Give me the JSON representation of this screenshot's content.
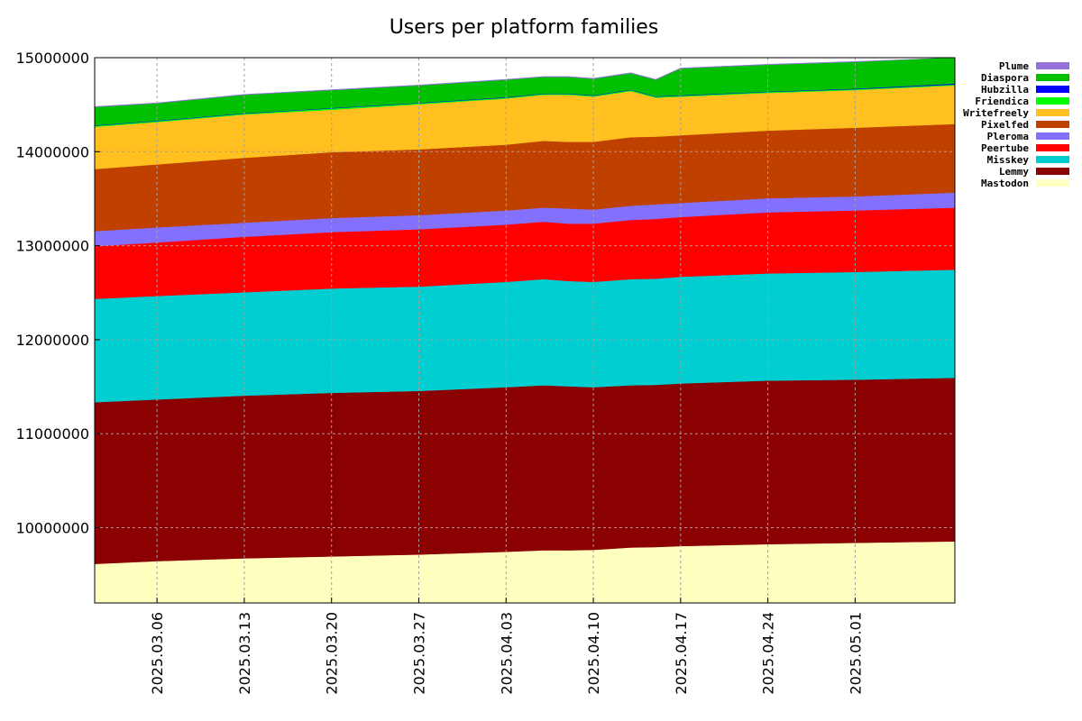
{
  "chart_data": {
    "type": "area",
    "stacked": true,
    "title": "Users per platform families",
    "xlabel": "",
    "ylabel": "",
    "x_range": [
      "2025-03-01",
      "2025-05-09"
    ],
    "ylim": [
      9200000,
      15000000
    ],
    "yticks": [
      10000000,
      11000000,
      12000000,
      13000000,
      14000000,
      15000000
    ],
    "ytick_labels": [
      "10000000",
      "11000000",
      "12000000",
      "13000000",
      "14000000",
      "15000000"
    ],
    "xticks": [
      "2025-03-06",
      "2025-03-13",
      "2025-03-20",
      "2025-03-27",
      "2025-04-03",
      "2025-04-10",
      "2025-04-17",
      "2025-04-24",
      "2025-05-01"
    ],
    "xtick_labels": [
      "2025.03.06",
      "2025.03.13",
      "2025.03.20",
      "2025.03.27",
      "2025.04.03",
      "2025.04.10",
      "2025.04.17",
      "2025.04.24",
      "2025.05.01"
    ],
    "grid": true,
    "legend_position": "top-right",
    "dates": [
      "2025-03-01",
      "2025-03-06",
      "2025-03-13",
      "2025-03-20",
      "2025-03-27",
      "2025-04-03",
      "2025-04-06",
      "2025-04-08",
      "2025-04-10",
      "2025-04-13",
      "2025-04-15",
      "2025-04-17",
      "2025-04-24",
      "2025-05-01",
      "2025-05-09"
    ],
    "cumulative_top": true,
    "series": [
      {
        "name": "Mastodon",
        "color": "#ffffc0",
        "values": [
          9610000,
          9640000,
          9670000,
          9690000,
          9710000,
          9740000,
          9755000,
          9755000,
          9760000,
          9785000,
          9790000,
          9800000,
          9820000,
          9835000,
          9850000
        ]
      },
      {
        "name": "Lemmy",
        "color": "#8b0000",
        "values": [
          11330000,
          11360000,
          11400000,
          11430000,
          11450000,
          11490000,
          11510000,
          11500000,
          11490000,
          11510000,
          11515000,
          11530000,
          11560000,
          11570000,
          11590000
        ]
      },
      {
        "name": "Misskey",
        "color": "#00ced1",
        "values": [
          12430000,
          12460000,
          12500000,
          12540000,
          12560000,
          12610000,
          12640000,
          12620000,
          12610000,
          12640000,
          12645000,
          12665000,
          12700000,
          12715000,
          12740000
        ]
      },
      {
        "name": "Peertube",
        "color": "#ff0000",
        "values": [
          12990000,
          13030000,
          13090000,
          13140000,
          13170000,
          13220000,
          13250000,
          13230000,
          13230000,
          13270000,
          13280000,
          13300000,
          13350000,
          13370000,
          13400000
        ]
      },
      {
        "name": "Pleroma",
        "color": "#8470ff",
        "values": [
          13150000,
          13190000,
          13240000,
          13290000,
          13320000,
          13370000,
          13400000,
          13390000,
          13380000,
          13420000,
          13435000,
          13450000,
          13500000,
          13520000,
          13560000
        ]
      },
      {
        "name": "Pixelfed",
        "color": "#c04000",
        "values": [
          13810000,
          13860000,
          13930000,
          13990000,
          14020000,
          14070000,
          14110000,
          14100000,
          14100000,
          14150000,
          14155000,
          14170000,
          14220000,
          14250000,
          14290000
        ]
      },
      {
        "name": "Writefreely",
        "color": "#ffc020",
        "values": [
          14260000,
          14310000,
          14390000,
          14440000,
          14500000,
          14560000,
          14600000,
          14600000,
          14580000,
          14640000,
          14570000,
          14580000,
          14620000,
          14650000,
          14700000
        ]
      },
      {
        "name": "Friendica",
        "color": "#00ff00",
        "values": [
          14270000,
          14320000,
          14400000,
          14455000,
          14510000,
          14570000,
          14610000,
          14610000,
          14590000,
          14650000,
          14580000,
          14590000,
          14630000,
          14660000,
          14710000
        ]
      },
      {
        "name": "Hubzilla",
        "color": "#0000ff",
        "values": [
          14275000,
          14325000,
          14405000,
          14460000,
          14515000,
          14575000,
          14615000,
          14615000,
          14595000,
          14655000,
          14585000,
          14595000,
          14635000,
          14665000,
          14720000
        ]
      },
      {
        "name": "Diaspora",
        "color": "#00c000",
        "values": [
          14470000,
          14510000,
          14600000,
          14650000,
          14700000,
          14760000,
          14790000,
          14790000,
          14770000,
          14830000,
          14760000,
          14880000,
          14920000,
          14950000,
          15000000
        ]
      },
      {
        "name": "Plume",
        "color": "#9370db",
        "values": [
          14480000,
          14520000,
          14610000,
          14660000,
          14710000,
          14770000,
          14800000,
          14800000,
          14780000,
          14840000,
          14770000,
          14890000,
          14930000,
          14960000,
          15020000
        ]
      }
    ]
  }
}
